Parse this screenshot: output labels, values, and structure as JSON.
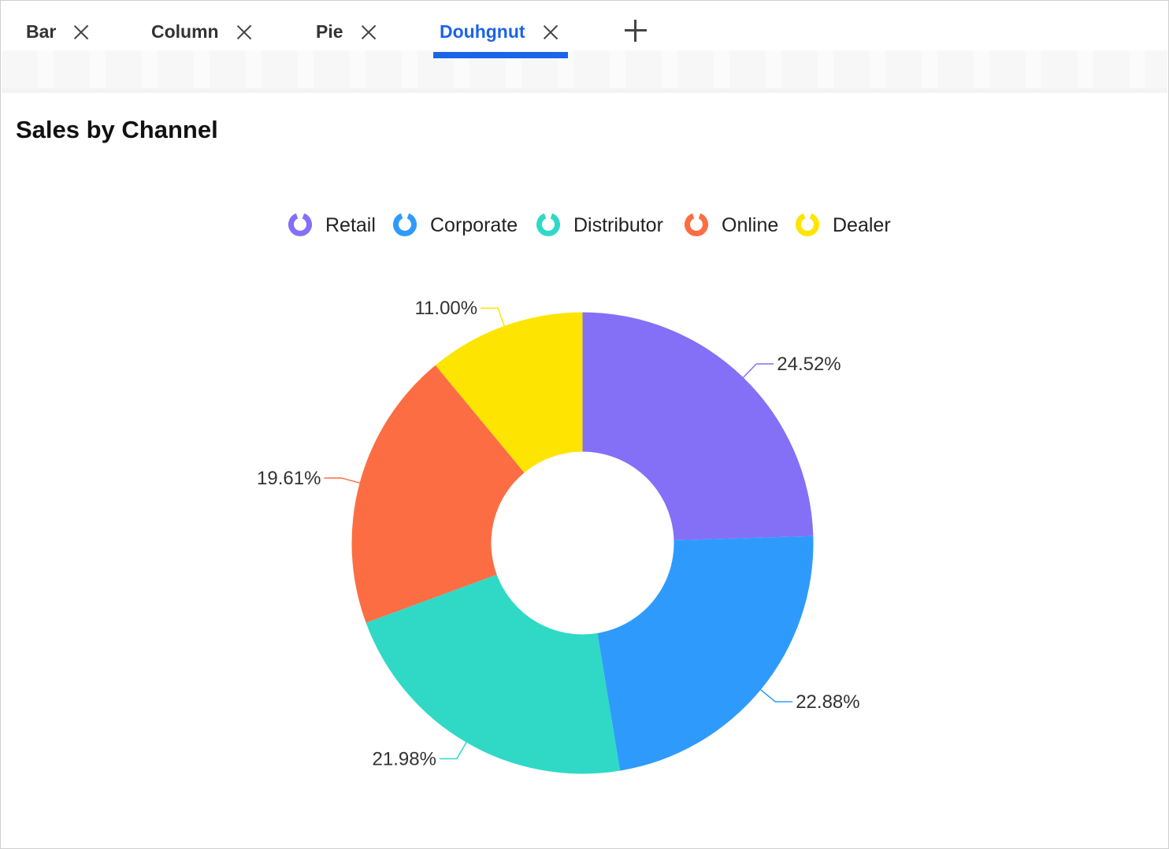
{
  "tabs": [
    {
      "label": "Bar",
      "active": false
    },
    {
      "label": "Column",
      "active": false
    },
    {
      "label": "Pie",
      "active": false
    },
    {
      "label": "Douhgnut",
      "active": true
    }
  ],
  "add_tab_icon": "plus-icon",
  "close_tab_icon": "close-icon",
  "accent_color": "#1a64e8",
  "chart_data": {
    "type": "doughnut",
    "title": "Sales by Channel",
    "legend_position": "top",
    "series": [
      {
        "name": "Retail",
        "value": 24.52,
        "label": "24.52%",
        "color": "#8470f7"
      },
      {
        "name": "Corporate",
        "value": 22.88,
        "label": "22.88%",
        "color": "#2e9bfc"
      },
      {
        "name": "Distributor",
        "value": 21.98,
        "label": "21.98%",
        "color": "#2fd9c6"
      },
      {
        "name": "Online",
        "value": 19.61,
        "label": "19.61%",
        "color": "#fd6d43"
      },
      {
        "name": "Dealer",
        "value": 11.0,
        "label": "11.00%",
        "color": "#fde501"
      }
    ]
  }
}
